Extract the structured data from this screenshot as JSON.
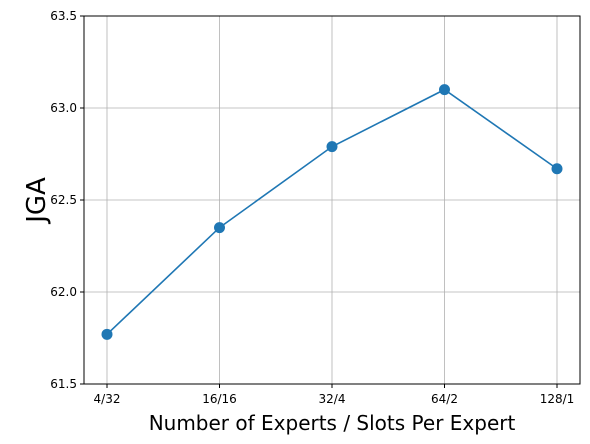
{
  "chart_data": {
    "type": "line",
    "categories": [
      "4/32",
      "16/16",
      "32/4",
      "64/2",
      "128/1"
    ],
    "series": [
      {
        "values": [
          61.77,
          62.35,
          62.79,
          63.1,
          62.67
        ],
        "color": "#1f77b4",
        "marker": "circle"
      }
    ],
    "xlabel": "Number of Experts / Slots Per Expert",
    "ylabel": "JGA",
    "ylim": [
      61.5,
      63.5
    ],
    "yticks": [
      "61.5",
      "62.0",
      "62.5",
      "63.0",
      "63.5"
    ],
    "grid": true
  }
}
